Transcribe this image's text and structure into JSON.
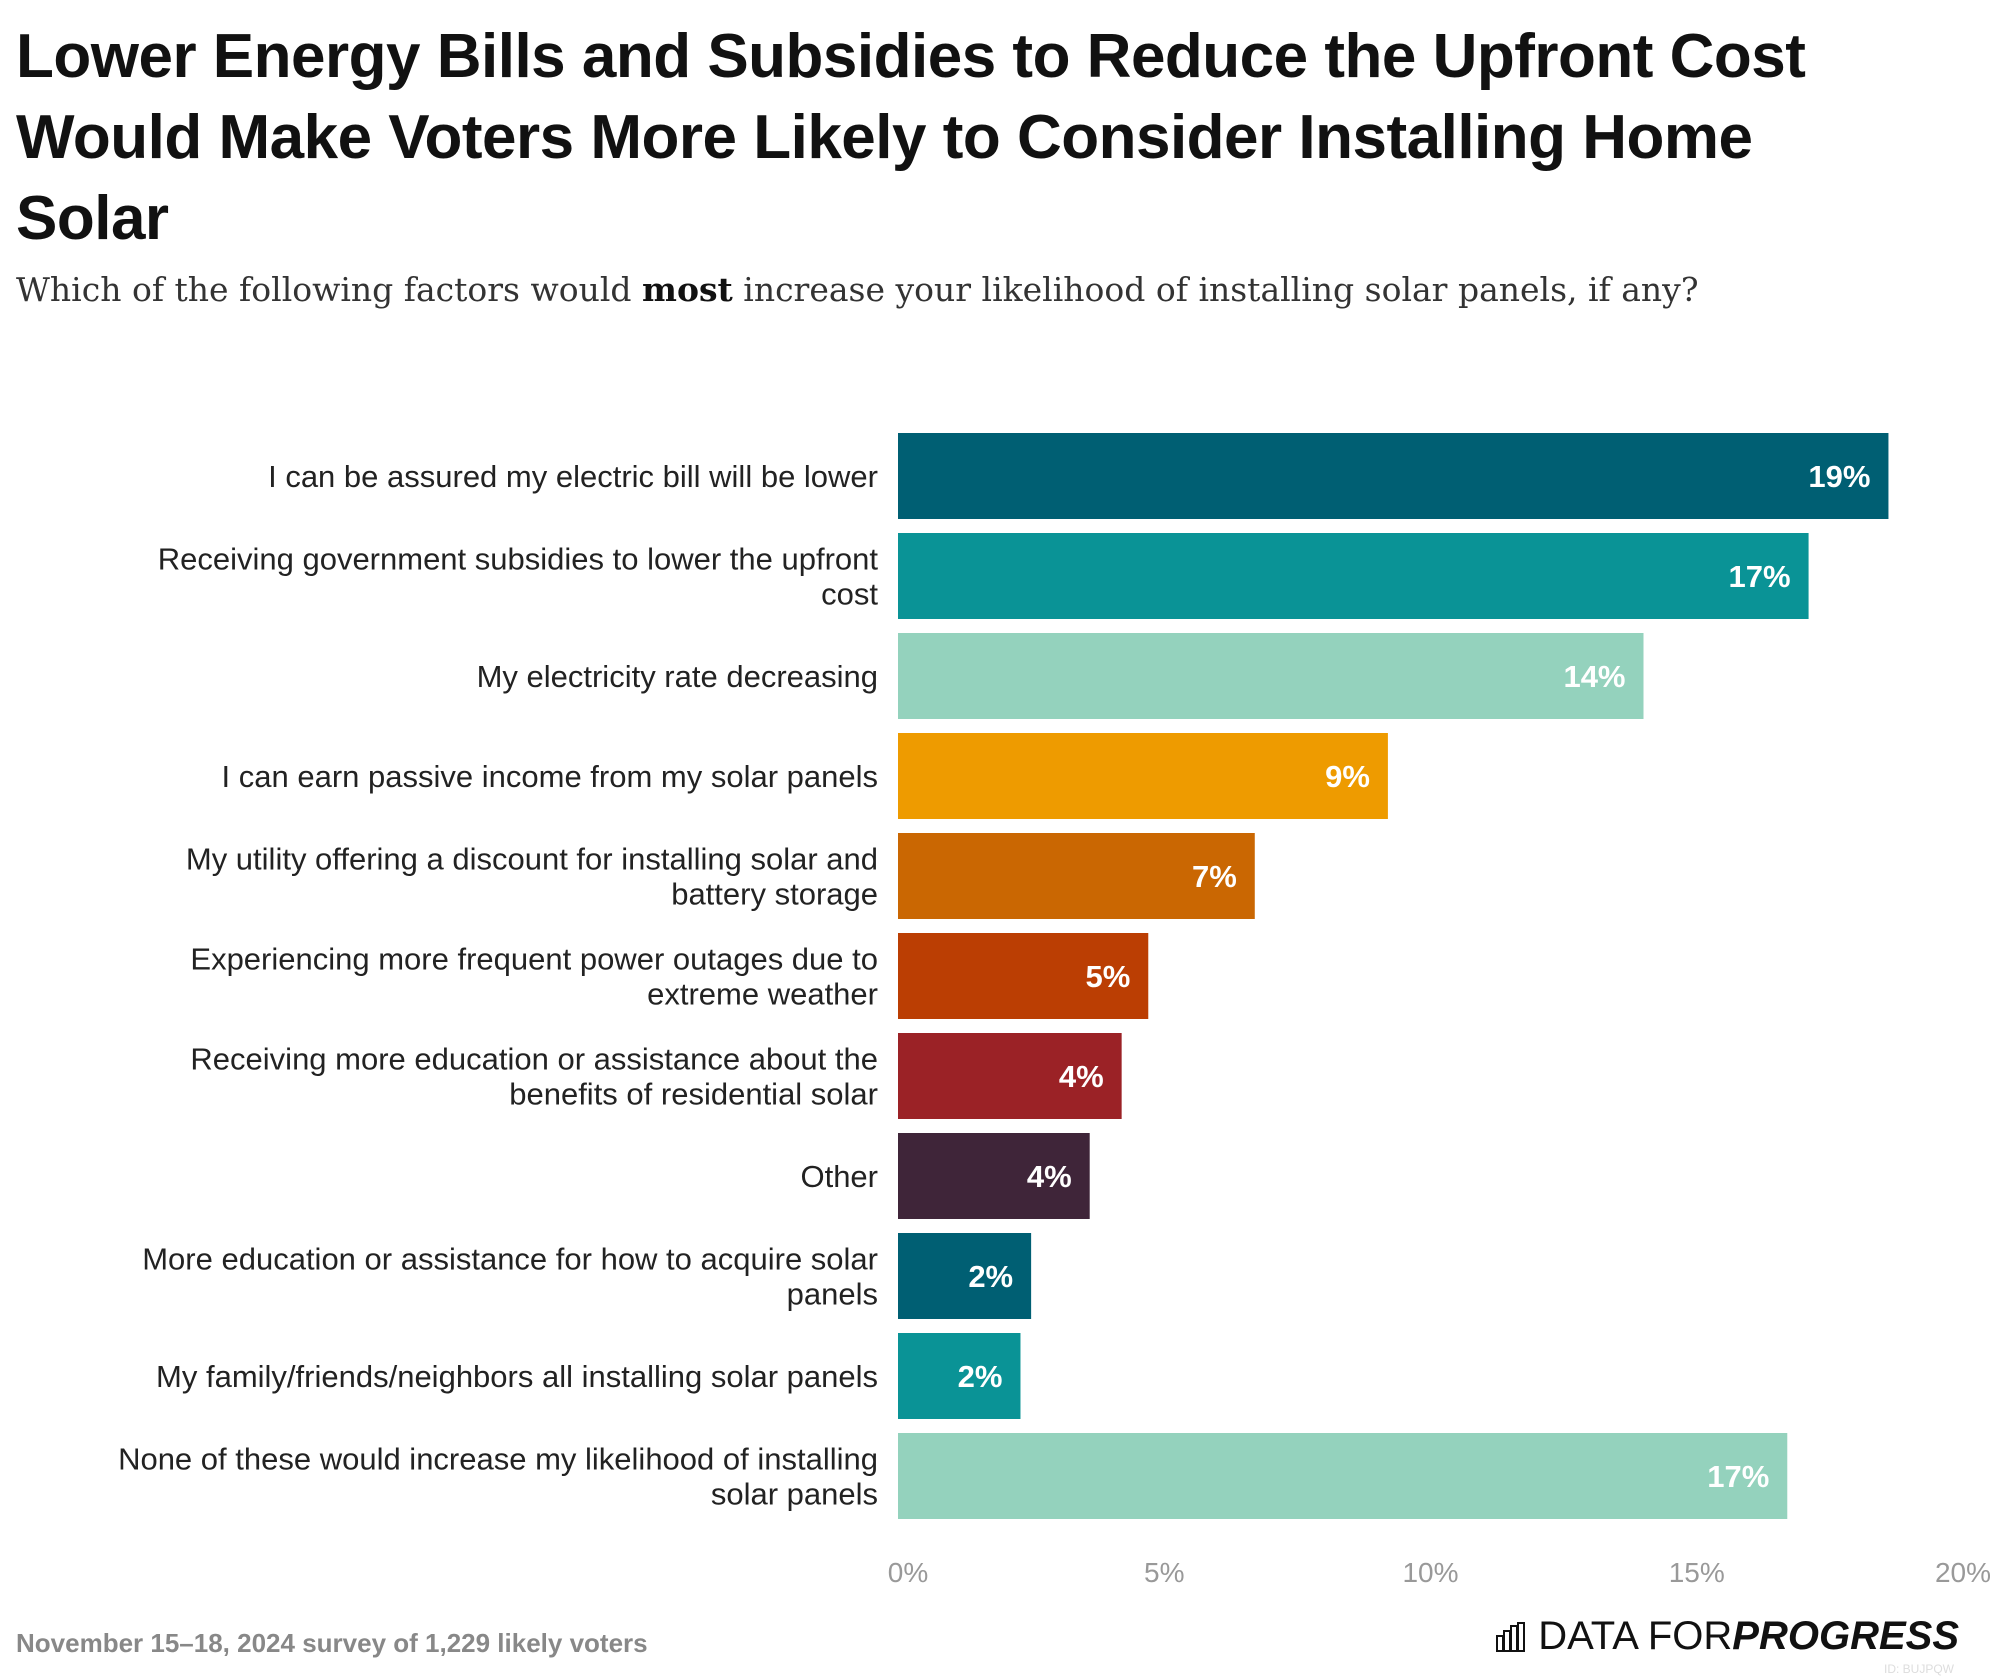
{
  "title": "Lower Energy Bills and Subsidies to Reduce the Upfront Cost Would Make Voters More Likely to Consider Installing Home Solar",
  "subtitle": {
    "before": "Which of the following factors would ",
    "bold": "most",
    "after": " increase your likelihood of installing solar panels, if any?"
  },
  "footer": "November 15–18, 2024 survey of 1,229 likely voters",
  "logo": {
    "icon": "bar-chart-icon",
    "text_light": "DATA FOR ",
    "text_bold": "PROGRESS",
    "id": "ID: BUJPQW"
  },
  "chart_data": {
    "type": "bar",
    "orientation": "horizontal",
    "xlim": [
      0,
      20
    ],
    "ticks": [
      "0%",
      "5%",
      "10%",
      "15%",
      "20%"
    ],
    "grid": false,
    "categories": [
      [
        "I can be assured my electric bill will be lower"
      ],
      [
        "Receiving government subsidies to lower the upfront",
        "cost"
      ],
      [
        "My electricity rate decreasing"
      ],
      [
        "I can earn passive income from my solar panels"
      ],
      [
        "My utility offering a discount for installing solar and",
        "battery storage"
      ],
      [
        "Experiencing more frequent power outages due to",
        "extreme weather"
      ],
      [
        "Receiving more education or assistance about the",
        "benefits of residential solar"
      ],
      [
        "Other"
      ],
      [
        "More education or assistance for how to acquire solar",
        "panels"
      ],
      [
        "My family/friends/neighbors all installing solar panels"
      ],
      [
        "None of these would increase my likelihood of installing",
        "solar panels"
      ]
    ],
    "values": [
      18.6,
      17.1,
      14.0,
      9.2,
      6.7,
      4.7,
      4.2,
      3.6,
      2.5,
      2.3,
      16.7
    ],
    "labels": [
      "19%",
      "17%",
      "14%",
      "9%",
      "7%",
      "5%",
      "4%",
      "4%",
      "2%",
      "2%",
      "17%"
    ],
    "colors": [
      "#005f73",
      "#0a9396",
      "#94d2bd",
      "#ee9b00",
      "#ca6702",
      "#bb3e03",
      "#9b2226",
      "#3f2539",
      "#005f73",
      "#0a9396",
      "#94d2bd"
    ]
  }
}
